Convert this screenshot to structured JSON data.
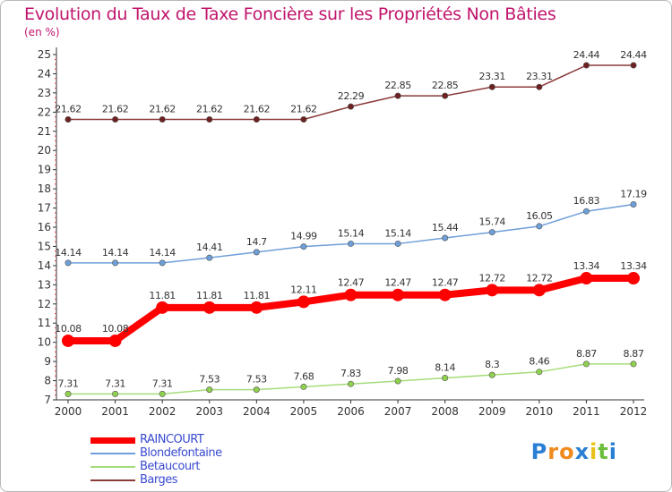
{
  "chart_data": {
    "type": "line",
    "title": "Evolution du Taux de Taxe Foncière sur les Propriétés Non Bâties",
    "subtitle": "(en %)",
    "xlabel": "",
    "ylabel": "",
    "categories": [
      "2000",
      "2001",
      "2002",
      "2003",
      "2004",
      "2005",
      "2006",
      "2007",
      "2008",
      "2009",
      "2010",
      "2011",
      "2012"
    ],
    "ylim": [
      7,
      25
    ],
    "yticks": [
      7,
      8,
      9,
      10,
      11,
      12,
      13,
      14,
      15,
      16,
      17,
      18,
      19,
      20,
      21,
      22,
      23,
      24,
      25
    ],
    "grid": false,
    "series": [
      {
        "name": "RAINCOURT",
        "color": "#ff0000",
        "markerFill": "#ff0000",
        "emphasis": true,
        "values": [
          10.08,
          10.08,
          11.81,
          11.81,
          11.81,
          12.11,
          12.47,
          12.47,
          12.47,
          12.72,
          12.72,
          13.34,
          13.34
        ],
        "labels": [
          "10.08",
          "10.08",
          "11.81",
          "11.81",
          "11.81",
          "12.11",
          "12.47",
          "12.47",
          "12.47",
          "12.72",
          "12.72",
          "13.34",
          "13.34"
        ]
      },
      {
        "name": "Blondefontaine",
        "color": "#6f9fd8",
        "markerFill": "#6f9fd8",
        "emphasis": false,
        "values": [
          14.14,
          14.14,
          14.14,
          14.41,
          14.7,
          14.99,
          15.14,
          15.14,
          15.44,
          15.74,
          16.05,
          16.83,
          17.19
        ],
        "labels": [
          "14.14",
          "14.14",
          "14.14",
          "14.41",
          "14.7",
          "14.99",
          "15.14",
          "15.14",
          "15.44",
          "15.74",
          "16.05",
          "16.83",
          "17.19"
        ]
      },
      {
        "name": "Betaucourt",
        "color": "#a6dc7a",
        "markerFill": "#8fd14f",
        "emphasis": false,
        "values": [
          7.31,
          7.31,
          7.31,
          7.53,
          7.53,
          7.68,
          7.83,
          7.98,
          8.14,
          8.3,
          8.46,
          8.87,
          8.87
        ],
        "labels": [
          "7.31",
          "7.31",
          "7.31",
          "7.53",
          "7.53",
          "7.68",
          "7.83",
          "7.98",
          "8.14",
          "8.3",
          "8.46",
          "8.87",
          "8.87"
        ]
      },
      {
        "name": "Barges",
        "color": "#8b3a3a",
        "markerFill": "#6e1f1f",
        "emphasis": false,
        "values": [
          21.62,
          21.62,
          21.62,
          21.62,
          21.62,
          21.62,
          22.29,
          22.85,
          22.85,
          23.31,
          23.31,
          24.44,
          24.44
        ],
        "labels": [
          "21.62",
          "21.62",
          "21.62",
          "21.62",
          "21.62",
          "21.62",
          "22.29",
          "22.85",
          "22.85",
          "23.31",
          "23.31",
          "24.44",
          "24.44"
        ]
      }
    ]
  },
  "legend": [
    {
      "label": "RAINCOURT",
      "color": "#ff0000"
    },
    {
      "label": "Blondefontaine",
      "color": "#6f9fd8"
    },
    {
      "label": "Betaucourt",
      "color": "#a6dc7a"
    },
    {
      "label": "Barges",
      "color": "#8b3a3a"
    }
  ],
  "logo": {
    "letters": [
      "P",
      "r",
      "o",
      "x",
      "i",
      "t",
      "i"
    ],
    "colors": [
      "#2a7fd4",
      "#f08a1c",
      "#f08a1c",
      "#2a7fd4",
      "#e8c21a",
      "#6bbf3a",
      "#2a7fd4"
    ]
  }
}
